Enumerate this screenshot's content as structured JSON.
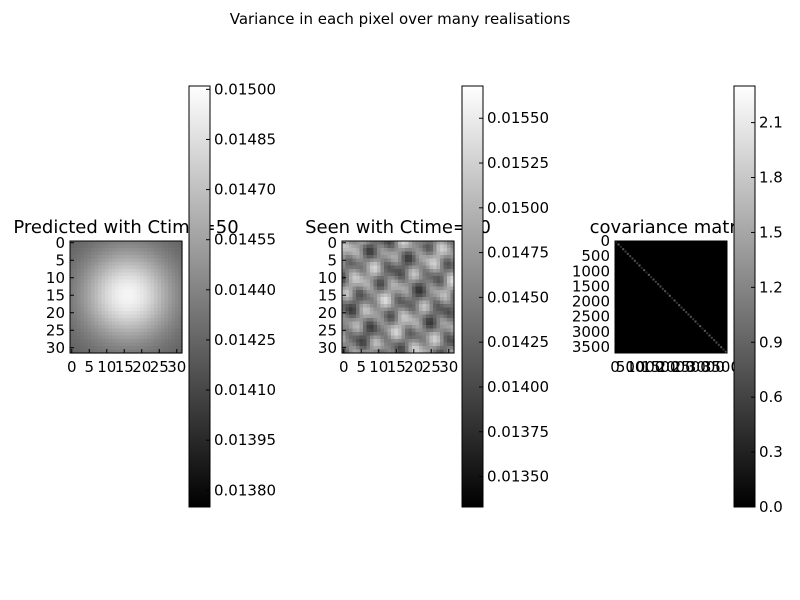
{
  "figure": {
    "suptitle": "Variance in each pixel over many realisations"
  },
  "chart_data": [
    {
      "type": "heatmap",
      "title": "Predicted with Ctime=50",
      "colormap": "gray",
      "grid": false,
      "matrix_size": 32,
      "x_ticks": [
        "0",
        "5",
        "10",
        "15",
        "20",
        "25",
        "30"
      ],
      "y_ticks": [
        "0",
        "5",
        "10",
        "15",
        "20",
        "25",
        "30"
      ],
      "colorbar": {
        "range": [
          0.01375,
          0.01501
        ],
        "ticks": [
          "0.01500",
          "0.01485",
          "0.01470",
          "0.01455",
          "0.01440",
          "0.01425",
          "0.01410",
          "0.01395",
          "0.01380"
        ],
        "tick_values": [
          0.015,
          0.01485,
          0.0147,
          0.01455,
          0.0144,
          0.01425,
          0.0141,
          0.01395,
          0.0138
        ]
      }
    },
    {
      "type": "heatmap",
      "title": "Seen with Ctime=50",
      "colormap": "gray",
      "grid": false,
      "matrix_size": 32,
      "x_ticks": [
        "0",
        "5",
        "10",
        "15",
        "20",
        "25",
        "30"
      ],
      "y_ticks": [
        "0",
        "5",
        "10",
        "15",
        "20",
        "25",
        "30"
      ],
      "colorbar": {
        "range": [
          0.01333,
          0.01568
        ],
        "ticks": [
          "0.01550",
          "0.01525",
          "0.01500",
          "0.01475",
          "0.01450",
          "0.01425",
          "0.01400",
          "0.01375",
          "0.01350"
        ],
        "tick_values": [
          0.0155,
          0.01525,
          0.015,
          0.01475,
          0.0145,
          0.01425,
          0.014,
          0.01375,
          0.0135
        ]
      }
    },
    {
      "type": "heatmap",
      "title": "covariance matrix",
      "colormap": "gray",
      "grid": false,
      "matrix_size": 3700,
      "x_ticks": [
        "0",
        "500",
        "1000",
        "1500",
        "2000",
        "2500",
        "3000",
        "3500"
      ],
      "y_ticks": [
        "0",
        "500",
        "1000",
        "1500",
        "2000",
        "2500",
        "3000",
        "3500"
      ],
      "colorbar": {
        "range": [
          0.0,
          2.3
        ],
        "ticks": [
          "2.1",
          "1.8",
          "1.5",
          "1.2",
          "0.9",
          "0.6",
          "0.3",
          "0.0"
        ],
        "tick_values": [
          2.1,
          1.8,
          1.5,
          1.2,
          0.9,
          0.6,
          0.3,
          0.0
        ]
      }
    }
  ]
}
